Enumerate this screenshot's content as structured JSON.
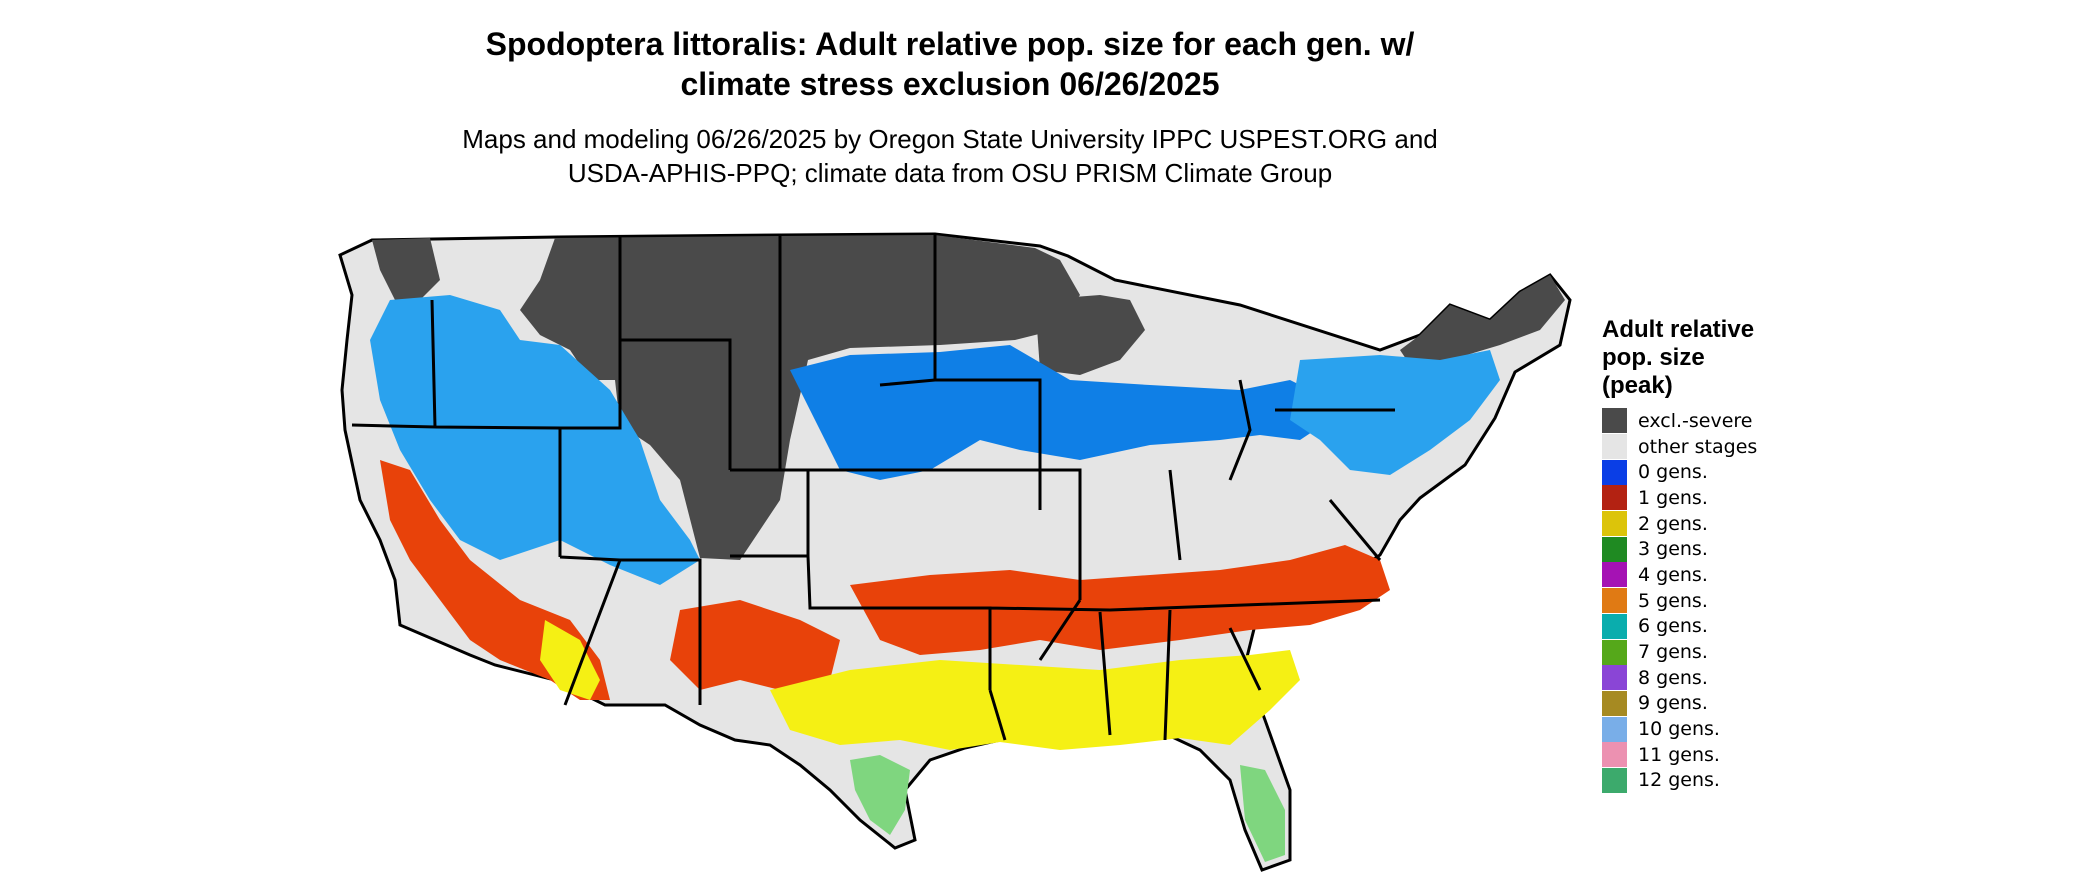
{
  "title": {
    "line1": "Spodoptera littoralis: Adult relative pop. size for each gen. w/",
    "line2": "climate stress exclusion 06/26/2025"
  },
  "subtitle": {
    "line1": "Maps and modeling 06/26/2025 by Oregon State University IPPC USPEST.ORG and",
    "line2": "USDA-APHIS-PPQ; climate data from OSU PRISM Climate Group"
  },
  "legend": {
    "title_lines": [
      "Adult relative",
      "pop. size",
      "(peak)"
    ],
    "items": [
      {
        "label": "excl.-severe",
        "color": "#4a4a4a"
      },
      {
        "label": "other stages",
        "color": "#e5e5e5"
      },
      {
        "label": "0 gens.",
        "color": "#0a3ee6"
      },
      {
        "label": "1 gens.",
        "color": "#b32212"
      },
      {
        "label": "2 gens.",
        "color": "#dcc40a"
      },
      {
        "label": "3 gens.",
        "color": "#1f8a22"
      },
      {
        "label": "4 gens.",
        "color": "#a512b4"
      },
      {
        "label": "5 gens.",
        "color": "#e07a14"
      },
      {
        "label": "6 gens.",
        "color": "#0aadad"
      },
      {
        "label": "7 gens.",
        "color": "#55a81a"
      },
      {
        "label": "8 gens.",
        "color": "#8a45d6"
      },
      {
        "label": "9 gens.",
        "color": "#a68a22"
      },
      {
        "label": "10 gens.",
        "color": "#79aee8"
      },
      {
        "label": "11 gens.",
        "color": "#ec91b1"
      },
      {
        "label": "12 gens.",
        "color": "#3caa6c"
      }
    ]
  },
  "map_colors": {
    "land": "#e5e5e5",
    "excluded": "#4a4a4a",
    "zero_gen_dark": "#0f7fe6",
    "zero_gen_light": "#2aa2ee",
    "one_gen": "#e8420a",
    "two_gen": "#f5f014",
    "late_gen": "#7fd67f",
    "border": "#000000"
  }
}
